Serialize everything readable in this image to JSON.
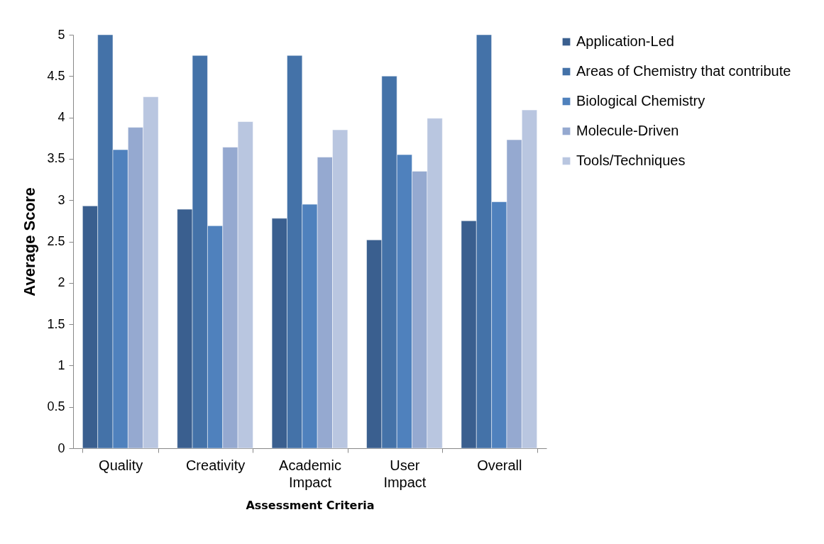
{
  "chart_data": {
    "type": "bar",
    "xlabel": "Assessment Criteria",
    "ylabel": "Average Score",
    "categories": [
      "Quality",
      "Creativity",
      "Academic Impact",
      "User Impact",
      "Overall"
    ],
    "series": [
      {
        "name": "Application-Led",
        "color": "#3a5f8f",
        "values": [
          2.93,
          2.89,
          2.78,
          2.52,
          2.75
        ]
      },
      {
        "name": "Areas of Chemistry that contribute",
        "color": "#4472a8",
        "values": [
          5,
          4.75,
          4.75,
          4.5,
          5
        ]
      },
      {
        "name": "Biological Chemistry",
        "color": "#4f81bd",
        "values": [
          3.61,
          2.69,
          2.95,
          3.55,
          2.98
        ]
      },
      {
        "name": "Molecule-Driven",
        "color": "#95a9d0",
        "values": [
          3.88,
          3.64,
          3.52,
          3.35,
          3.73
        ]
      },
      {
        "name": "Tools/Techniques",
        "color": "#b9c6e0",
        "values": [
          4.25,
          3.95,
          3.85,
          3.99,
          4.09
        ]
      }
    ],
    "ylim": [
      0,
      5
    ],
    "yticks": [
      0,
      0.5,
      1,
      1.5,
      2,
      2.5,
      3,
      3.5,
      4,
      4.5,
      5
    ],
    "grid": false,
    "legend": "right"
  }
}
